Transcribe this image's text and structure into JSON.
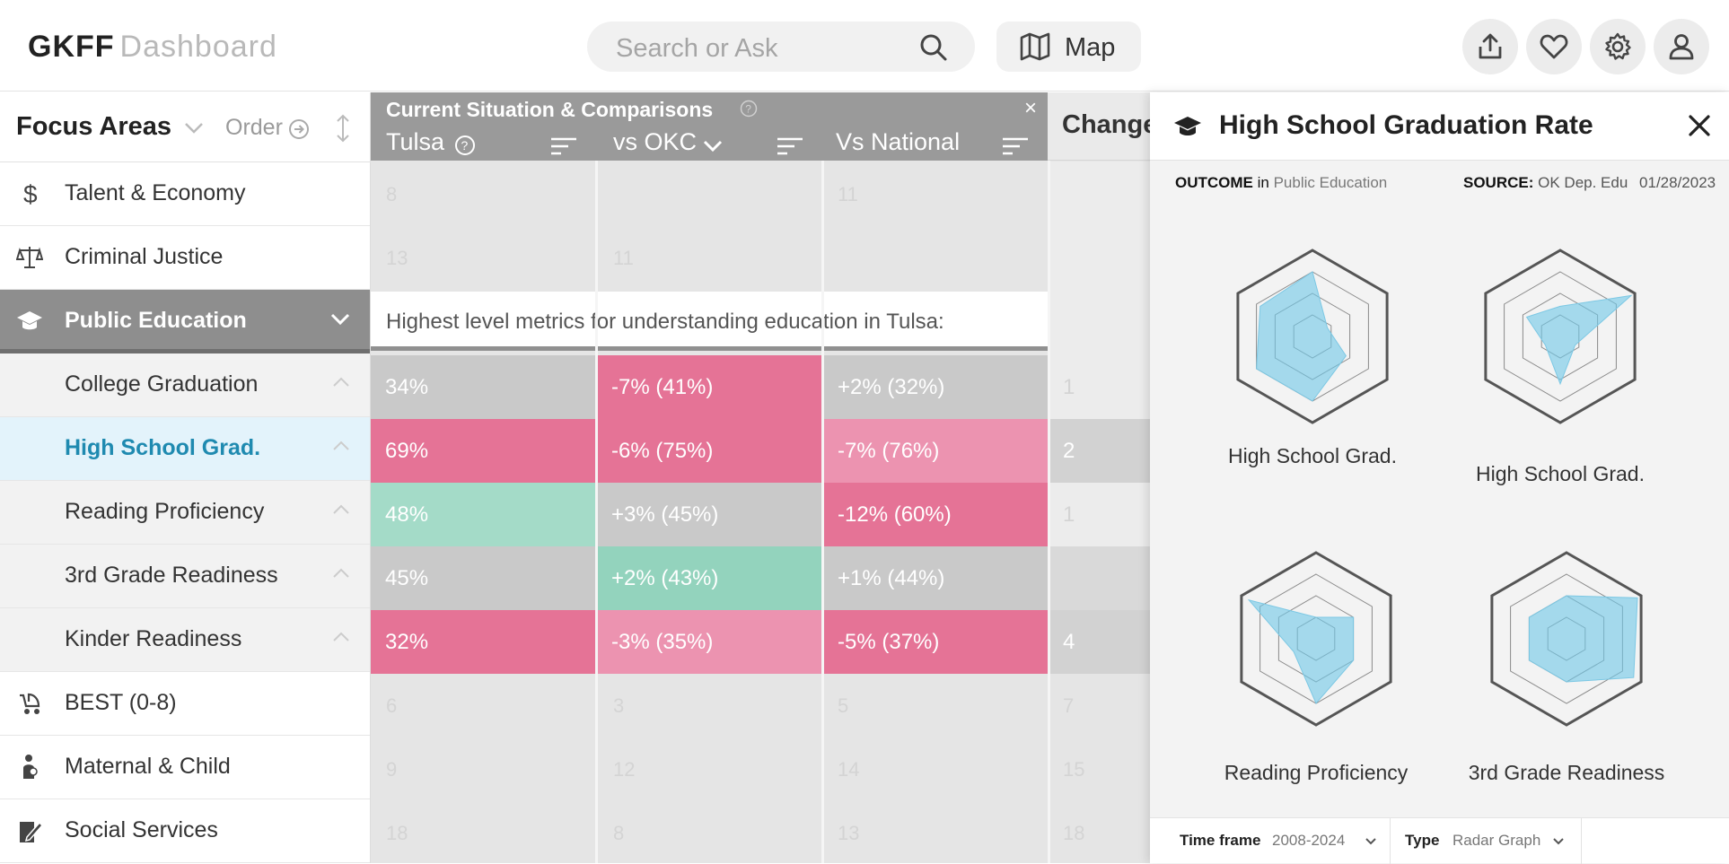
{
  "header": {
    "brand_main": "GKFF",
    "brand_sub": "Dashboard",
    "search_placeholder": "Search or Ask",
    "map_label": "Map",
    "action_icons": [
      "share-icon",
      "heart-icon",
      "gear-icon",
      "user-icon"
    ]
  },
  "sidebar": {
    "title": "Focus Areas",
    "order_label": "Order",
    "items": [
      {
        "label": "Talent & Economy",
        "icon": "dollar-icon"
      },
      {
        "label": "Criminal Justice",
        "icon": "scales-icon"
      },
      {
        "label": "Public Education",
        "icon": "graduation-cap-icon"
      },
      {
        "label": "College Graduation"
      },
      {
        "label": "High School Grad."
      },
      {
        "label": "Reading Proficiency"
      },
      {
        "label": "3rd Grade Readiness"
      },
      {
        "label": "Kinder Readiness"
      },
      {
        "label": "BEST (0-8)",
        "icon": "stroller-icon"
      },
      {
        "label": "Maternal & Child",
        "icon": "mother-child-icon"
      },
      {
        "label": "Social Services",
        "icon": "clipboard-icon"
      }
    ]
  },
  "grid": {
    "group_title": "Current Situation & Comparisons",
    "close_label": "×",
    "columns": [
      "Tulsa",
      "vs OKC",
      "Vs National"
    ],
    "change_header": "Change",
    "banner": "Highest level metrics for understanding education in Tulsa:",
    "ghost_top": [
      [
        "8",
        "",
        "11"
      ],
      [
        "13",
        "11",
        ""
      ]
    ],
    "ghost_bottom": [
      [
        "6",
        "3",
        "5",
        "7"
      ],
      [
        "9",
        "12",
        "14",
        "15"
      ],
      [
        "18",
        "8",
        "13",
        "18"
      ]
    ],
    "rows": [
      {
        "tulsa": "34%",
        "okc": "-7% (41%)",
        "national": "+2% (32%)",
        "change": "1"
      },
      {
        "tulsa": "69%",
        "okc": "-6% (75%)",
        "national": "-7% (76%)",
        "change": "2"
      },
      {
        "tulsa": "48%",
        "okc": "+3% (45%)",
        "national": "-12% (60%)",
        "change": "1"
      },
      {
        "tulsa": "45%",
        "okc": "+2% (43%)",
        "national": "+1% (44%)",
        "change": ""
      },
      {
        "tulsa": "32%",
        "okc": "-3% (35%)",
        "national": "-5% (37%)",
        "change": "4"
      }
    ],
    "colors": {
      "pink_dark": "#e57396",
      "pink": "#ec93b0",
      "gray": "#c9c9c9",
      "green": "#a4dbc8",
      "green_dark": "#93d3bd"
    }
  },
  "panel": {
    "title": "High School Graduation Rate",
    "outcome_label": "OUTCOME",
    "in_label": "in",
    "area": "Public Education",
    "source_label": "SOURCE:",
    "source": "OK Dep. Edu",
    "date": "01/28/2023",
    "radars": [
      {
        "label": "High School Grad.",
        "values": [
          0.75,
          0.2,
          0.45,
          0.75,
          0.75,
          0.7
        ]
      },
      {
        "label": "High School Grad.",
        "values": [
          0.35,
          0.95,
          0.2,
          0.55,
          0.2,
          0.45
        ]
      },
      {
        "label": "Reading Proficiency",
        "values": [
          0.25,
          0.5,
          0.5,
          0.75,
          0.3,
          0.9
        ]
      },
      {
        "label": "3rd Grade Readiness",
        "values": [
          0.5,
          0.95,
          0.9,
          0.5,
          0.5,
          0.5
        ]
      }
    ],
    "timeframe_label": "Time frame",
    "timeframe_value": "2008-2024",
    "type_label": "Type",
    "type_value": "Radar Graph"
  }
}
